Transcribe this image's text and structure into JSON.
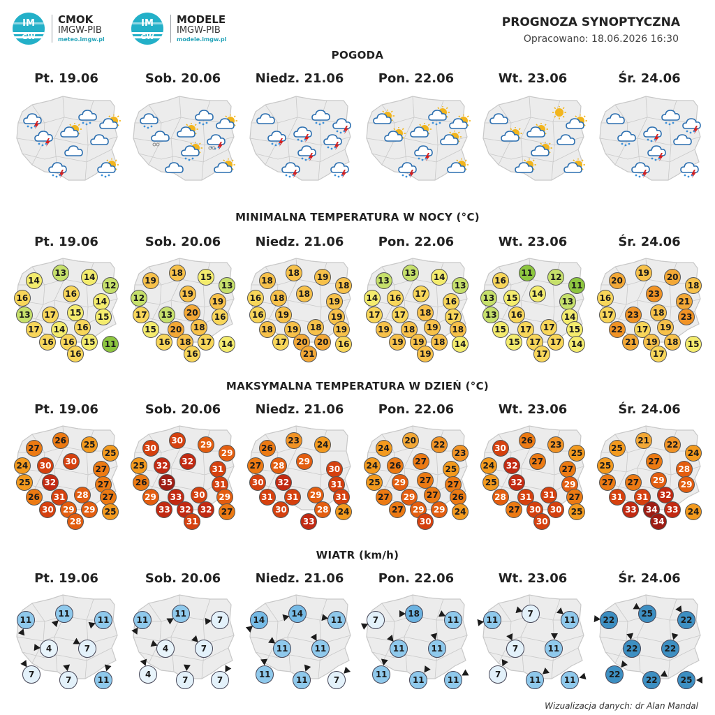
{
  "header": {
    "logo1": {
      "circle_top": "IM",
      "circle_bottom": "GW",
      "title": "CMOK",
      "subtitle": "IMGW-PIB",
      "url": "meteo.imgw.pl"
    },
    "logo2": {
      "circle_top": "IM",
      "circle_bottom": "GW",
      "title": "MODELE",
      "subtitle": "IMGW-PIB",
      "url": "modele.imgw.pl"
    },
    "title": "PROGNOZA SYNOPTYCZNA",
    "issued": "Opracowano: 18.06.2026 16:30"
  },
  "days": [
    "Pt. 19.06",
    "Sob. 20.06",
    "Niedz. 21.06",
    "Pon. 22.06",
    "Wt. 23.06",
    "Śr. 24.06"
  ],
  "sections": {
    "weather": "POGODA",
    "tmin": "MINIMALNA TEMPERATURA W NOCY (°C)",
    "tmax": "MAKSYMALNA TEMPERATURA W DZIEŃ (°C)",
    "wind": "WIATR (km/h)"
  },
  "colors": {
    "map_fill": "#ececec",
    "map_border": "#c8c8c8",
    "cloud": "#ffffff",
    "cloud_stroke": "#2c6fb0",
    "sun": "#f2b51c",
    "bolt": "#d62020",
    "rain": "#3a8fd9"
  },
  "weather_icons": [
    [
      "rain-storm-cloud",
      "cloud-rain",
      "sun-cloud",
      "storm-cloud",
      "sun-cloud",
      "cloud",
      "storm-cloud",
      "cloud",
      "sun-cloud-rain"
    ],
    [
      "rain-cloud",
      "cloud-rain",
      "sun-cloud",
      "hail-cloud",
      "sun-cloud",
      "hail-storm-cloud",
      "cloud",
      "sun-cloud-rain",
      "sun-cloud"
    ],
    [
      "cloud",
      "cloud-rain",
      "storm-cloud",
      "storm-cloud",
      "storm-cloud",
      "storm-cloud",
      "storm-cloud",
      "storm-cloud",
      "storm-cloud"
    ],
    [
      "sun-cloud",
      "sun-cloud-rain",
      "sun-cloud",
      "sun-cloud",
      "sun-cloud",
      "sun-cloud",
      "storm-cloud",
      "storm-cloud",
      "sun-cloud"
    ],
    [
      "cloud",
      "sun",
      "sun-cloud",
      "sun-cloud",
      "sun-cloud",
      "cloud",
      "sun-cloud",
      "sun-cloud",
      "sun-cloud"
    ],
    [
      "cloud",
      "cloud-rain",
      "storm-cloud",
      "cloud-rain",
      "storm-cloud",
      "cloud",
      "storm-cloud",
      "storm-cloud",
      "storm-cloud"
    ]
  ],
  "tmin": [
    [
      14,
      13,
      14,
      12,
      16,
      16,
      14,
      13,
      17,
      15,
      15,
      17,
      14,
      16,
      16,
      16,
      15,
      16,
      11
    ],
    [
      19,
      18,
      15,
      13,
      12,
      19,
      19,
      17,
      13,
      20,
      16,
      15,
      20,
      18,
      16,
      18,
      17,
      16,
      14
    ],
    [
      18,
      18,
      19,
      18,
      16,
      18,
      18,
      19,
      16,
      19,
      19,
      18,
      19,
      18,
      19,
      17,
      20,
      20,
      21,
      16
    ],
    [
      13,
      13,
      14,
      13,
      14,
      16,
      17,
      16,
      17,
      17,
      18,
      17,
      19,
      18,
      19,
      18,
      19,
      19,
      18,
      19,
      14
    ],
    [
      16,
      11,
      12,
      11,
      13,
      15,
      14,
      13,
      13,
      16,
      14,
      15,
      17,
      17,
      15,
      15,
      17,
      17,
      17,
      14
    ],
    [
      20,
      19,
      20,
      18,
      16,
      23,
      21,
      17,
      23,
      18,
      23,
      22,
      17,
      19,
      21,
      19,
      18,
      17,
      15
    ]
  ],
  "tmax": [
    [
      27,
      26,
      25,
      25,
      24,
      30,
      30,
      27,
      25,
      32,
      27,
      26,
      31,
      28,
      27,
      30,
      29,
      29,
      28,
      25
    ],
    [
      30,
      30,
      29,
      29,
      25,
      32,
      32,
      31,
      26,
      35,
      31,
      29,
      33,
      30,
      29,
      33,
      32,
      32,
      31,
      27
    ],
    [
      26,
      23,
      24,
      27,
      28,
      29,
      30,
      30,
      32,
      31,
      31,
      31,
      29,
      31,
      30,
      28,
      33,
      24
    ],
    [
      24,
      20,
      22,
      23,
      24,
      26,
      27,
      25,
      25,
      29,
      27,
      27,
      27,
      29,
      27,
      26,
      27,
      29,
      29,
      30,
      24
    ],
    [
      30,
      26,
      23,
      25,
      24,
      32,
      27,
      27,
      25,
      32,
      29,
      28,
      31,
      31,
      27,
      27,
      30,
      30,
      30,
      25
    ],
    [
      25,
      21,
      22,
      24,
      25,
      27,
      28,
      27,
      27,
      29,
      29,
      31,
      31,
      32,
      33,
      34,
      33,
      34,
      24
    ]
  ],
  "wind": [
    [
      11,
      11,
      11,
      4,
      7,
      7,
      7,
      11
    ],
    [
      11,
      11,
      7,
      4,
      7,
      4,
      7,
      7
    ],
    [
      14,
      14,
      11,
      11,
      11,
      11,
      11,
      7
    ],
    [
      7,
      18,
      11,
      11,
      11,
      11,
      11,
      11
    ],
    [
      11,
      7,
      11,
      7,
      11,
      7,
      11,
      11
    ],
    [
      22,
      25,
      22,
      22,
      22,
      22,
      22,
      25
    ]
  ],
  "credit": "Wizualizacja danych: dr Alan Mandal"
}
